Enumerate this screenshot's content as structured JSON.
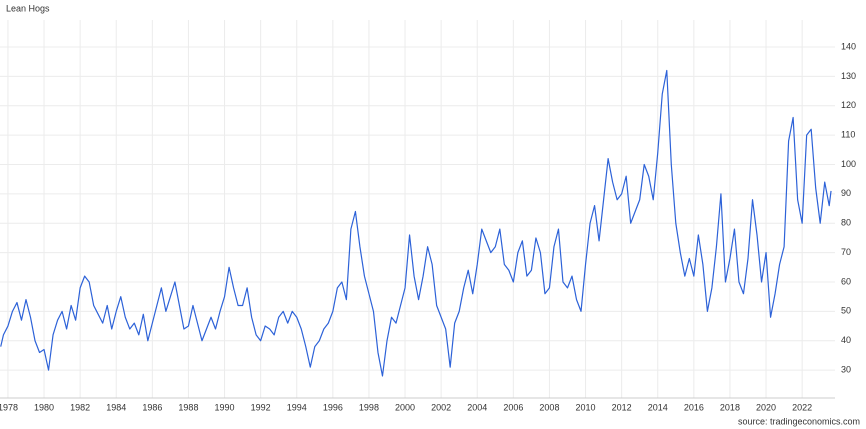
{
  "chart_data": {
    "type": "line",
    "title": "Lean Hogs",
    "source": "source: tradingeconomics.com",
    "x": [
      1977.6,
      1977.75,
      1978,
      1978.25,
      1978.5,
      1978.75,
      1979,
      1979.25,
      1979.5,
      1979.75,
      1980,
      1980.25,
      1980.5,
      1980.75,
      1981,
      1981.25,
      1981.5,
      1981.75,
      1982,
      1982.25,
      1982.5,
      1982.75,
      1983,
      1983.25,
      1983.5,
      1983.75,
      1984,
      1984.25,
      1984.5,
      1984.75,
      1985,
      1985.25,
      1985.5,
      1985.75,
      1986,
      1986.25,
      1986.5,
      1986.75,
      1987,
      1987.25,
      1987.5,
      1987.75,
      1988,
      1988.25,
      1988.5,
      1988.75,
      1989,
      1989.25,
      1989.5,
      1989.75,
      1990,
      1990.25,
      1990.5,
      1990.75,
      1991,
      1991.25,
      1991.5,
      1991.75,
      1992,
      1992.25,
      1992.5,
      1992.75,
      1993,
      1993.25,
      1993.5,
      1993.75,
      1994,
      1994.25,
      1994.5,
      1994.75,
      1995,
      1995.25,
      1995.5,
      1995.75,
      1996,
      1996.25,
      1996.5,
      1996.75,
      1997,
      1997.25,
      1997.5,
      1997.75,
      1998,
      1998.25,
      1998.5,
      1998.75,
      1999,
      1999.25,
      1999.5,
      1999.75,
      2000,
      2000.25,
      2000.5,
      2000.75,
      2001,
      2001.25,
      2001.5,
      2001.75,
      2002,
      2002.25,
      2002.5,
      2002.75,
      2003,
      2003.25,
      2003.5,
      2003.75,
      2004,
      2004.25,
      2004.5,
      2004.75,
      2005,
      2005.25,
      2005.5,
      2005.75,
      2006,
      2006.25,
      2006.5,
      2006.75,
      2007,
      2007.25,
      2007.5,
      2007.75,
      2008,
      2008.25,
      2008.5,
      2008.75,
      2009,
      2009.25,
      2009.5,
      2009.75,
      2010,
      2010.25,
      2010.5,
      2010.75,
      2011,
      2011.25,
      2011.5,
      2011.75,
      2012,
      2012.25,
      2012.5,
      2012.75,
      2013,
      2013.25,
      2013.5,
      2013.75,
      2014,
      2014.25,
      2014.5,
      2014.75,
      2015,
      2015.25,
      2015.5,
      2015.75,
      2016,
      2016.25,
      2016.5,
      2016.75,
      2017,
      2017.25,
      2017.5,
      2017.75,
      2018,
      2018.25,
      2018.5,
      2018.75,
      2019,
      2019.25,
      2019.5,
      2019.75,
      2020,
      2020.25,
      2020.5,
      2020.75,
      2021,
      2021.25,
      2021.5,
      2021.75,
      2022,
      2022.25,
      2022.5,
      2022.75,
      2023,
      2023.25,
      2023.5,
      2023.6
    ],
    "series": [
      {
        "name": "Lean Hogs",
        "color": "#2d62d8",
        "values": [
          38,
          42,
          45,
          50,
          53,
          47,
          54,
          48,
          40,
          36,
          37,
          30,
          42,
          47,
          50,
          44,
          52,
          47,
          58,
          62,
          60,
          52,
          49,
          46,
          52,
          44,
          50,
          55,
          48,
          44,
          46,
          42,
          49,
          40,
          46,
          52,
          58,
          50,
          55,
          60,
          52,
          44,
          45,
          52,
          46,
          40,
          44,
          48,
          44,
          50,
          55,
          65,
          58,
          52,
          52,
          58,
          48,
          42,
          40,
          45,
          44,
          42,
          48,
          50,
          46,
          50,
          48,
          44,
          38,
          31,
          38,
          40,
          44,
          46,
          50,
          58,
          60,
          54,
          78,
          84,
          72,
          62,
          56,
          50,
          36,
          28,
          40,
          48,
          46,
          52,
          58,
          76,
          62,
          54,
          62,
          72,
          66,
          52,
          48,
          44,
          31,
          46,
          50,
          58,
          64,
          56,
          66,
          78,
          74,
          70,
          72,
          78,
          66,
          64,
          60,
          70,
          74,
          62,
          64,
          75,
          70,
          56,
          58,
          72,
          78,
          60,
          58,
          62,
          54,
          50,
          66,
          80,
          86,
          74,
          88,
          102,
          94,
          88,
          90,
          96,
          80,
          84,
          88,
          100,
          96,
          88,
          104,
          124,
          132,
          100,
          80,
          70,
          62,
          68,
          62,
          76,
          66,
          50,
          58,
          72,
          90,
          60,
          68,
          78,
          60,
          56,
          68,
          88,
          76,
          60,
          70,
          48,
          56,
          66,
          72,
          108,
          116,
          88,
          80,
          110,
          112,
          92,
          80,
          94,
          86,
          91
        ]
      }
    ],
    "xlim": [
      1977.56,
      2023.82
    ],
    "ylim": [
      20.5,
      149.2
    ],
    "xticks": [
      1978,
      1980,
      1982,
      1984,
      1986,
      1988,
      1990,
      1992,
      1994,
      1996,
      1998,
      2000,
      2002,
      2004,
      2006,
      2008,
      2010,
      2012,
      2014,
      2016,
      2018,
      2020,
      2022
    ],
    "yticks": [
      30,
      40,
      50,
      60,
      70,
      80,
      90,
      100,
      110,
      120,
      130,
      140
    ],
    "grid": true
  }
}
